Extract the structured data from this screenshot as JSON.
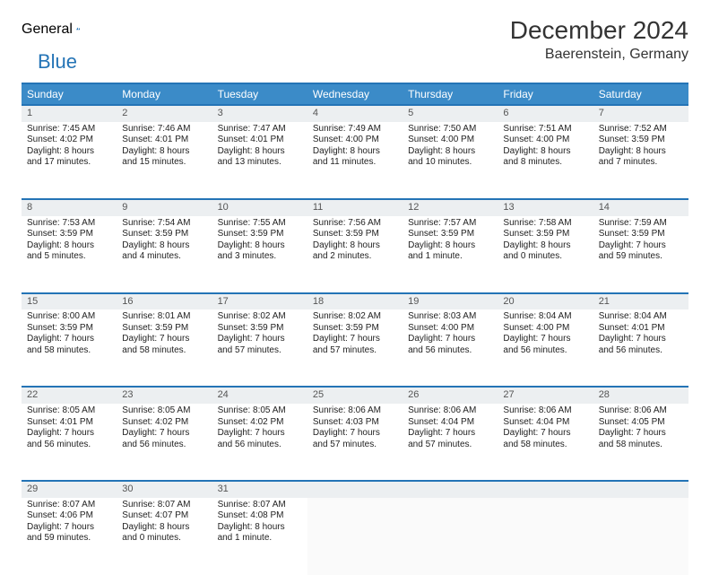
{
  "brand": {
    "general": "General",
    "blue": "Blue"
  },
  "title": "December 2024",
  "location": "Baerenstein, Germany",
  "colors": {
    "header_bg": "#3b8bc8",
    "header_border": "#2474b6",
    "daynum_bg": "#eceff1",
    "text": "#222222"
  },
  "weekdays": [
    "Sunday",
    "Monday",
    "Tuesday",
    "Wednesday",
    "Thursday",
    "Friday",
    "Saturday"
  ],
  "weeks": [
    [
      {
        "n": "1",
        "sr": "Sunrise: 7:45 AM",
        "ss": "Sunset: 4:02 PM",
        "dl1": "Daylight: 8 hours",
        "dl2": "and 17 minutes."
      },
      {
        "n": "2",
        "sr": "Sunrise: 7:46 AM",
        "ss": "Sunset: 4:01 PM",
        "dl1": "Daylight: 8 hours",
        "dl2": "and 15 minutes."
      },
      {
        "n": "3",
        "sr": "Sunrise: 7:47 AM",
        "ss": "Sunset: 4:01 PM",
        "dl1": "Daylight: 8 hours",
        "dl2": "and 13 minutes."
      },
      {
        "n": "4",
        "sr": "Sunrise: 7:49 AM",
        "ss": "Sunset: 4:00 PM",
        "dl1": "Daylight: 8 hours",
        "dl2": "and 11 minutes."
      },
      {
        "n": "5",
        "sr": "Sunrise: 7:50 AM",
        "ss": "Sunset: 4:00 PM",
        "dl1": "Daylight: 8 hours",
        "dl2": "and 10 minutes."
      },
      {
        "n": "6",
        "sr": "Sunrise: 7:51 AM",
        "ss": "Sunset: 4:00 PM",
        "dl1": "Daylight: 8 hours",
        "dl2": "and 8 minutes."
      },
      {
        "n": "7",
        "sr": "Sunrise: 7:52 AM",
        "ss": "Sunset: 3:59 PM",
        "dl1": "Daylight: 8 hours",
        "dl2": "and 7 minutes."
      }
    ],
    [
      {
        "n": "8",
        "sr": "Sunrise: 7:53 AM",
        "ss": "Sunset: 3:59 PM",
        "dl1": "Daylight: 8 hours",
        "dl2": "and 5 minutes."
      },
      {
        "n": "9",
        "sr": "Sunrise: 7:54 AM",
        "ss": "Sunset: 3:59 PM",
        "dl1": "Daylight: 8 hours",
        "dl2": "and 4 minutes."
      },
      {
        "n": "10",
        "sr": "Sunrise: 7:55 AM",
        "ss": "Sunset: 3:59 PM",
        "dl1": "Daylight: 8 hours",
        "dl2": "and 3 minutes."
      },
      {
        "n": "11",
        "sr": "Sunrise: 7:56 AM",
        "ss": "Sunset: 3:59 PM",
        "dl1": "Daylight: 8 hours",
        "dl2": "and 2 minutes."
      },
      {
        "n": "12",
        "sr": "Sunrise: 7:57 AM",
        "ss": "Sunset: 3:59 PM",
        "dl1": "Daylight: 8 hours",
        "dl2": "and 1 minute."
      },
      {
        "n": "13",
        "sr": "Sunrise: 7:58 AM",
        "ss": "Sunset: 3:59 PM",
        "dl1": "Daylight: 8 hours",
        "dl2": "and 0 minutes."
      },
      {
        "n": "14",
        "sr": "Sunrise: 7:59 AM",
        "ss": "Sunset: 3:59 PM",
        "dl1": "Daylight: 7 hours",
        "dl2": "and 59 minutes."
      }
    ],
    [
      {
        "n": "15",
        "sr": "Sunrise: 8:00 AM",
        "ss": "Sunset: 3:59 PM",
        "dl1": "Daylight: 7 hours",
        "dl2": "and 58 minutes."
      },
      {
        "n": "16",
        "sr": "Sunrise: 8:01 AM",
        "ss": "Sunset: 3:59 PM",
        "dl1": "Daylight: 7 hours",
        "dl2": "and 58 minutes."
      },
      {
        "n": "17",
        "sr": "Sunrise: 8:02 AM",
        "ss": "Sunset: 3:59 PM",
        "dl1": "Daylight: 7 hours",
        "dl2": "and 57 minutes."
      },
      {
        "n": "18",
        "sr": "Sunrise: 8:02 AM",
        "ss": "Sunset: 3:59 PM",
        "dl1": "Daylight: 7 hours",
        "dl2": "and 57 minutes."
      },
      {
        "n": "19",
        "sr": "Sunrise: 8:03 AM",
        "ss": "Sunset: 4:00 PM",
        "dl1": "Daylight: 7 hours",
        "dl2": "and 56 minutes."
      },
      {
        "n": "20",
        "sr": "Sunrise: 8:04 AM",
        "ss": "Sunset: 4:00 PM",
        "dl1": "Daylight: 7 hours",
        "dl2": "and 56 minutes."
      },
      {
        "n": "21",
        "sr": "Sunrise: 8:04 AM",
        "ss": "Sunset: 4:01 PM",
        "dl1": "Daylight: 7 hours",
        "dl2": "and 56 minutes."
      }
    ],
    [
      {
        "n": "22",
        "sr": "Sunrise: 8:05 AM",
        "ss": "Sunset: 4:01 PM",
        "dl1": "Daylight: 7 hours",
        "dl2": "and 56 minutes."
      },
      {
        "n": "23",
        "sr": "Sunrise: 8:05 AM",
        "ss": "Sunset: 4:02 PM",
        "dl1": "Daylight: 7 hours",
        "dl2": "and 56 minutes."
      },
      {
        "n": "24",
        "sr": "Sunrise: 8:05 AM",
        "ss": "Sunset: 4:02 PM",
        "dl1": "Daylight: 7 hours",
        "dl2": "and 56 minutes."
      },
      {
        "n": "25",
        "sr": "Sunrise: 8:06 AM",
        "ss": "Sunset: 4:03 PM",
        "dl1": "Daylight: 7 hours",
        "dl2": "and 57 minutes."
      },
      {
        "n": "26",
        "sr": "Sunrise: 8:06 AM",
        "ss": "Sunset: 4:04 PM",
        "dl1": "Daylight: 7 hours",
        "dl2": "and 57 minutes."
      },
      {
        "n": "27",
        "sr": "Sunrise: 8:06 AM",
        "ss": "Sunset: 4:04 PM",
        "dl1": "Daylight: 7 hours",
        "dl2": "and 58 minutes."
      },
      {
        "n": "28",
        "sr": "Sunrise: 8:06 AM",
        "ss": "Sunset: 4:05 PM",
        "dl1": "Daylight: 7 hours",
        "dl2": "and 58 minutes."
      }
    ],
    [
      {
        "n": "29",
        "sr": "Sunrise: 8:07 AM",
        "ss": "Sunset: 4:06 PM",
        "dl1": "Daylight: 7 hours",
        "dl2": "and 59 minutes."
      },
      {
        "n": "30",
        "sr": "Sunrise: 8:07 AM",
        "ss": "Sunset: 4:07 PM",
        "dl1": "Daylight: 8 hours",
        "dl2": "and 0 minutes."
      },
      {
        "n": "31",
        "sr": "Sunrise: 8:07 AM",
        "ss": "Sunset: 4:08 PM",
        "dl1": "Daylight: 8 hours",
        "dl2": "and 1 minute."
      },
      null,
      null,
      null,
      null
    ]
  ]
}
